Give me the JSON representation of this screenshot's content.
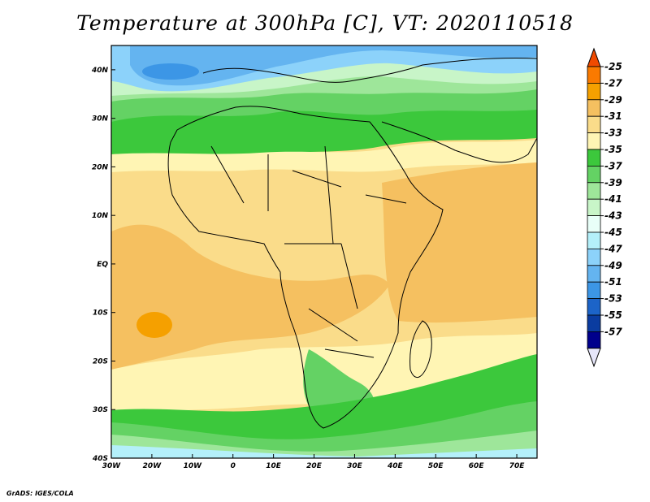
{
  "title": "Temperature at 300hPa [C], VT: 2020110518",
  "credit": "GrADS: IGES/COLA",
  "map": {
    "variable": "Temperature",
    "level": "300hPa",
    "units": "C",
    "valid_time": "2020110518",
    "lon_range": [
      -30,
      75
    ],
    "lat_range": [
      -40,
      45
    ],
    "lon_ticks": [
      "30W",
      "20W",
      "10W",
      "0",
      "10E",
      "20E",
      "30E",
      "40E",
      "50E",
      "60E",
      "70E"
    ],
    "lat_ticks": [
      "40N",
      "30N",
      "20N",
      "10N",
      "EQ",
      "10S",
      "20S",
      "30S",
      "40S"
    ]
  },
  "colorbar": {
    "labels": [
      "-25",
      "-27",
      "-29",
      "-31",
      "-33",
      "-35",
      "-37",
      "-39",
      "-41",
      "-43",
      "-45",
      "-47",
      "-49",
      "-51",
      "-53",
      "-55",
      "-57"
    ],
    "colors": [
      "#f04a00",
      "#fa7a00",
      "#f5a000",
      "#f5c060",
      "#fadc8a",
      "#fff5b4",
      "#3cc83c",
      "#64d264",
      "#9ee69a",
      "#c8f5c8",
      "#e8fff8",
      "#b4f0fa",
      "#8cd2fa",
      "#64b4f0",
      "#3c96e6",
      "#1c64c8",
      "#0a3ca0",
      "#00008c",
      "#e6e6fa"
    ]
  },
  "icons": {
    "top_arrow": "colorbar-top-arrow-icon",
    "bottom_arrow": "colorbar-bottom-arrow-icon"
  }
}
